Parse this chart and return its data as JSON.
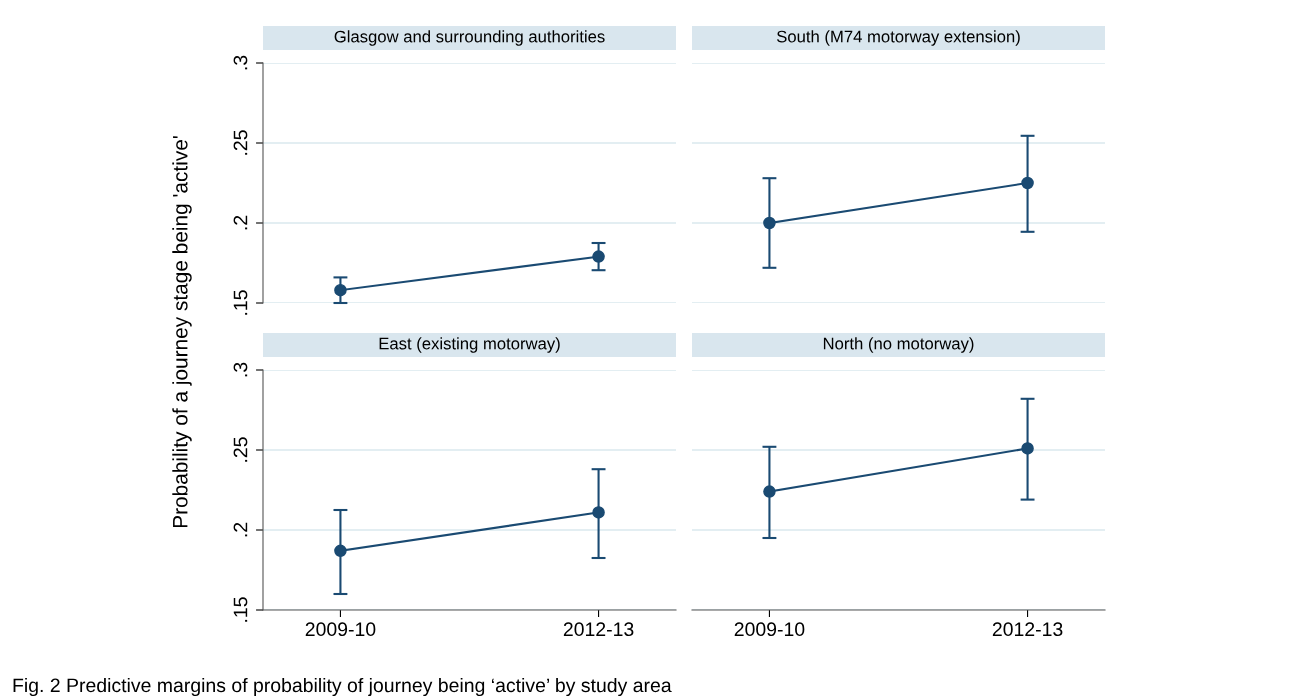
{
  "chart_data": [
    {
      "type": "line",
      "title": "Glasgow and surrounding authorities",
      "ylabel": "Probability of a journey stage being 'active'",
      "annotations": [
        "Fig. 2 Predictive margins of probability of journey being ‘active’ by study area"
      ],
      "categories": [
        "2009-10",
        "2012-13"
      ],
      "series": [
        {
          "color": "#1a4a72",
          "values": [
            0.158,
            0.179
          ],
          "errors": [
            [
              0.15,
              0.166
            ],
            [
              0.1705,
              0.1875
            ]
          ]
        }
      ],
      "ylim": [
        0.15,
        0.3
      ],
      "yticks": [
        {
          "value": 0.15,
          "label": ".15"
        },
        {
          "value": 0.2,
          "label": ".2"
        },
        {
          "value": 0.25,
          "label": ".25"
        },
        {
          "value": 0.3,
          "label": ".3"
        }
      ],
      "grid": "y",
      "marker": "circle",
      "tick_labels": "y"
    },
    {
      "type": "line",
      "title": "South (M74 motorway extension)",
      "categories": [
        "2009-10",
        "2012-13"
      ],
      "series": [
        {
          "color": "#1a4a72",
          "values": [
            0.2,
            0.225
          ],
          "errors": [
            [
              0.172,
              0.228
            ],
            [
              0.1945,
              0.2545
            ]
          ]
        }
      ],
      "ylim": [
        0.15,
        0.3
      ],
      "yticks": [
        0.15,
        0.2,
        0.25,
        0.3
      ],
      "grid": "y",
      "marker": "circle",
      "tick_labels": false
    },
    {
      "type": "line",
      "title": "East (existing motorway)",
      "categories": [
        "2009-10",
        "2012-13"
      ],
      "series": [
        {
          "color": "#1a4a72",
          "values": [
            0.187,
            0.211
          ],
          "errors": [
            [
              0.16,
              0.2125
            ],
            [
              0.1825,
              0.238
            ]
          ]
        }
      ],
      "ylim": [
        0.15,
        0.3
      ],
      "yticks": [
        {
          "value": 0.15,
          "label": ".15"
        },
        {
          "value": 0.2,
          "label": ".2"
        },
        {
          "value": 0.25,
          "label": ".25"
        },
        {
          "value": 0.3,
          "label": ".3"
        }
      ],
      "grid": "y",
      "marker": "circle"
    },
    {
      "type": "line",
      "title": "North (no motorway)",
      "categories": [
        "2009-10",
        "2012-13"
      ],
      "series": [
        {
          "color": "#1a4a72",
          "values": [
            0.224,
            0.251
          ],
          "errors": [
            [
              0.195,
              0.252
            ],
            [
              0.219,
              0.282
            ]
          ]
        }
      ],
      "ylim": [
        0.15,
        0.3
      ],
      "yticks": [
        0.15,
        0.2,
        0.25,
        0.3
      ],
      "grid": "y",
      "marker": "circle",
      "tick_labels": "x"
    }
  ]
}
